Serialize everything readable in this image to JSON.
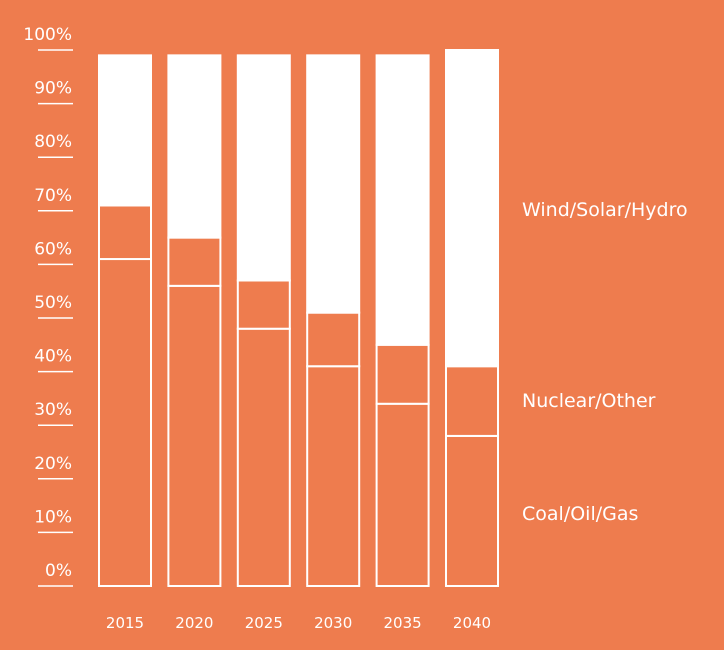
{
  "chart_data": {
    "type": "bar",
    "stacked": true,
    "categories": [
      "2015",
      "2020",
      "2025",
      "2030",
      "2035",
      "2040"
    ],
    "series": [
      {
        "name": "Coal/Oil/Gas",
        "values": [
          61,
          56,
          48,
          41,
          34,
          28
        ]
      },
      {
        "name": "Nuclear/Other",
        "values": [
          10,
          9,
          9,
          10,
          11,
          13
        ]
      },
      {
        "name": "Wind/Solar/Hydro",
        "values": [
          28,
          34,
          42,
          48,
          54,
          59
        ]
      }
    ],
    "yticks": [
      "0%",
      "10%",
      "20%",
      "30%",
      "40%",
      "50%",
      "60%",
      "70%",
      "80%",
      "90%",
      "100%"
    ],
    "ylim": [
      0,
      100
    ],
    "title": "",
    "xlabel": "",
    "ylabel": "",
    "legend_position": "right",
    "grid": false,
    "colors": {
      "background": "#EE7C4E",
      "foreground": "#FFFFFF"
    }
  }
}
